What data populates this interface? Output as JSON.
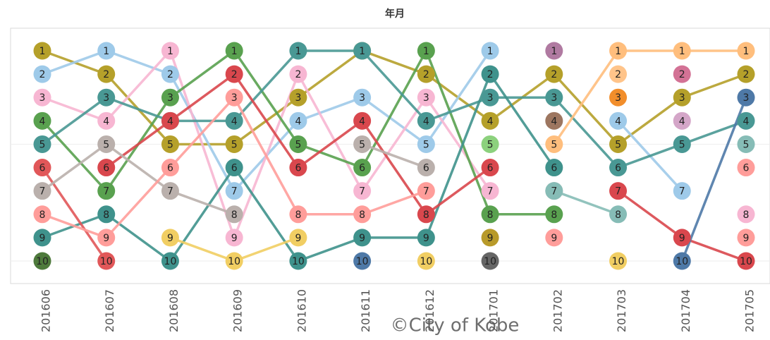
{
  "chart_data": {
    "type": "bump",
    "title": "年月",
    "annotation": "©City of Kobe",
    "categories": [
      "201606",
      "201607",
      "201608",
      "201609",
      "201610",
      "201611",
      "201612",
      "201701",
      "201702",
      "201703",
      "201704",
      "201705"
    ],
    "ylim": [
      1,
      10
    ],
    "y_reversed": true,
    "grid": true,
    "yticks": [
      5,
      10
    ],
    "series": [
      {
        "color": "#b5a02a",
        "values": [
          1,
          2,
          5,
          5,
          3,
          1,
          2,
          4,
          2,
          5,
          3,
          2
        ]
      },
      {
        "color": "#9ecae9",
        "values": [
          2,
          1,
          2,
          7,
          4,
          3,
          5,
          1,
          null,
          4,
          7,
          null
        ]
      },
      {
        "color": "#f7b6d2",
        "values": [
          3,
          4,
          1,
          9,
          2,
          7,
          3,
          7,
          null,
          null,
          null,
          8
        ]
      },
      {
        "color": "#59a14f",
        "values": [
          4,
          7,
          3,
          1,
          5,
          6,
          1,
          8,
          8,
          null,
          null,
          null
        ]
      },
      {
        "color": "#499894",
        "values": [
          5,
          3,
          4,
          4,
          1,
          1,
          4,
          3,
          3,
          6,
          5,
          4
        ]
      },
      {
        "color": "#3f928c",
        "values": [
          9,
          8,
          10,
          6,
          10,
          9,
          9,
          2,
          6,
          null,
          null,
          null
        ]
      },
      {
        "color": "#e15759",
        "values": [
          6,
          10,
          null,
          null,
          null,
          null,
          null,
          null,
          null,
          null,
          null,
          null
        ]
      },
      {
        "color": "#d9474d",
        "values": [
          null,
          6,
          4,
          2,
          6,
          4,
          8,
          6,
          null,
          7,
          9,
          10
        ]
      },
      {
        "color": "#bab0ac",
        "values": [
          7,
          5,
          7,
          8,
          null,
          5,
          6,
          null,
          7,
          null,
          null,
          null
        ]
      },
      {
        "color": "#ff9d9a",
        "values": [
          8,
          9,
          6,
          3,
          8,
          8,
          7,
          null,
          9,
          null,
          null,
          6
        ]
      },
      {
        "color": "#f1ce63",
        "values": [
          null,
          null,
          9,
          10,
          9,
          null,
          10,
          null,
          null,
          10,
          null,
          null
        ]
      },
      {
        "color": "#4e7a3c",
        "values": [
          10,
          null,
          null,
          null,
          null,
          null,
          null,
          null,
          null,
          null,
          null,
          null
        ]
      },
      {
        "color": "#4e79a7",
        "values": [
          null,
          null,
          null,
          null,
          null,
          10,
          null,
          null,
          null,
          null,
          10,
          3
        ]
      },
      {
        "color": "#666666",
        "values": [
          null,
          null,
          null,
          null,
          null,
          null,
          null,
          10,
          null,
          null,
          null,
          null
        ]
      },
      {
        "color": "#8cd17d",
        "values": [
          null,
          null,
          null,
          null,
          null,
          null,
          null,
          5,
          null,
          null,
          null,
          null
        ]
      },
      {
        "color": "#b89a2a",
        "values": [
          null,
          null,
          null,
          null,
          null,
          null,
          null,
          9,
          null,
          null,
          null,
          null
        ]
      },
      {
        "color": "#b07aa1",
        "values": [
          null,
          null,
          null,
          null,
          null,
          null,
          null,
          null,
          1,
          null,
          null,
          null
        ]
      },
      {
        "color": "#9d7660",
        "values": [
          null,
          null,
          null,
          null,
          null,
          null,
          null,
          null,
          4,
          null,
          null,
          null
        ]
      },
      {
        "color": "#ffbe7d",
        "values": [
          null,
          null,
          null,
          null,
          null,
          null,
          null,
          null,
          5,
          1,
          1,
          1
        ]
      },
      {
        "color": "#ffc48a",
        "values": [
          null,
          null,
          null,
          null,
          null,
          null,
          null,
          null,
          null,
          2,
          null,
          null
        ]
      },
      {
        "color": "#f28e2b",
        "values": [
          null,
          null,
          null,
          null,
          null,
          null,
          null,
          null,
          null,
          3,
          null,
          null
        ]
      },
      {
        "color": "#d37295",
        "values": [
          null,
          null,
          null,
          null,
          null,
          null,
          null,
          null,
          null,
          null,
          2,
          null
        ]
      },
      {
        "color": "#d4a6c8",
        "values": [
          null,
          null,
          null,
          null,
          null,
          null,
          null,
          null,
          null,
          null,
          4,
          null
        ]
      },
      {
        "color": "#86bcb6",
        "values": [
          null,
          null,
          null,
          null,
          null,
          null,
          null,
          null,
          7,
          8,
          null,
          5
        ]
      },
      {
        "color": "#ff9d9a",
        "values": [
          null,
          null,
          null,
          null,
          null,
          null,
          null,
          null,
          null,
          null,
          null,
          9
        ]
      }
    ]
  }
}
